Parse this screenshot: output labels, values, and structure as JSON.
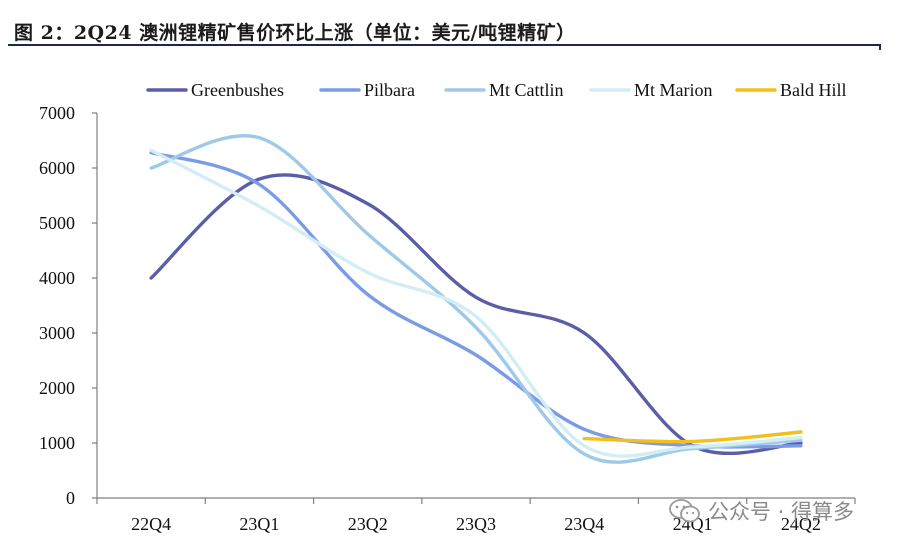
{
  "header": {
    "title": "图 2：2Q24 澳洲锂精矿售价环比上涨（单位：美元/吨锂精矿）"
  },
  "watermark": {
    "text": "公众号 · 得算多",
    "icon": "wechat-icon"
  },
  "chart_data": {
    "type": "line",
    "title": "",
    "xlabel": "",
    "ylabel": "",
    "categories": [
      "22Q4",
      "23Q1",
      "23Q2",
      "23Q3",
      "23Q4",
      "24Q1",
      "24Q2"
    ],
    "ylim": [
      0,
      7000
    ],
    "yticks": [
      "0",
      "1000",
      "2000",
      "3000",
      "4000",
      "5000",
      "6000",
      "7000"
    ],
    "grid": false,
    "legend_position": "top",
    "smooth": true,
    "series": [
      {
        "name": "Greenbushes",
        "color": "#5b5ea6",
        "values": [
          4000,
          5800,
          5350,
          3650,
          3000,
          950,
          1000
        ]
      },
      {
        "name": "Pilbara",
        "color": "#7b9be6",
        "values": [
          6280,
          5700,
          3700,
          2600,
          1250,
          950,
          950
        ]
      },
      {
        "name": "Mt Cattlin",
        "color": "#9fc9e9",
        "values": [
          6000,
          6550,
          4800,
          3100,
          800,
          900,
          1050
        ]
      },
      {
        "name": "Mt Marion",
        "color": "#d3edf6",
        "values": [
          6320,
          5300,
          4100,
          3300,
          950,
          930,
          1100
        ]
      },
      {
        "name": "Bald Hill",
        "color": "#f2bf1b",
        "values": [
          null,
          null,
          null,
          null,
          1080,
          1030,
          1200
        ]
      }
    ]
  }
}
